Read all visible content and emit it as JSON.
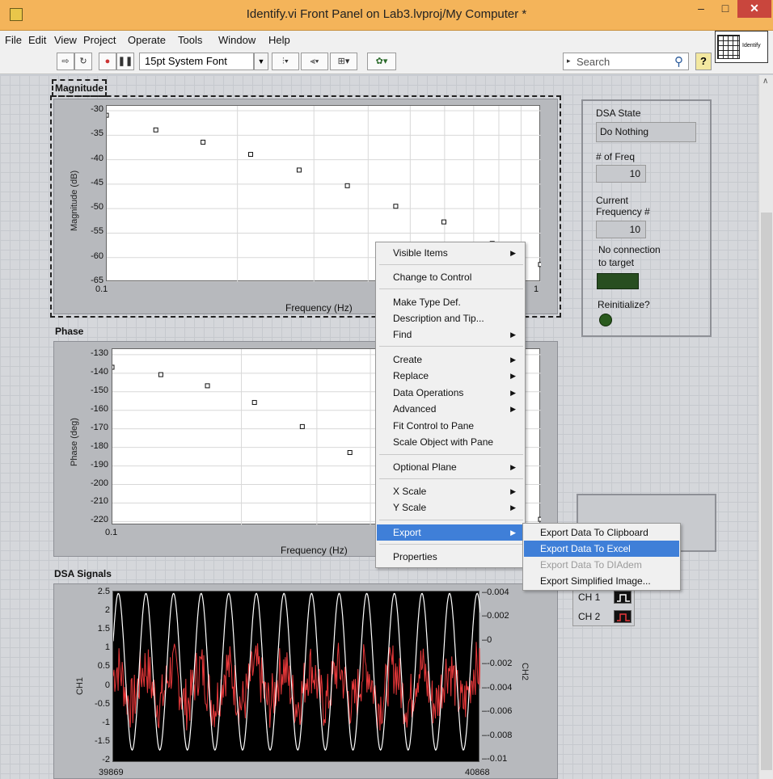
{
  "window": {
    "title": "Identify.vi Front Panel on Lab3.lvproj/My Computer *",
    "min": "–",
    "max": "□",
    "close": "✕"
  },
  "menu": [
    "File",
    "Edit",
    "View",
    "Project",
    "Operate",
    "Tools",
    "Window",
    "Help"
  ],
  "toolbar": {
    "font": "15pt System Font",
    "search_placeholder": "Search",
    "help": "?",
    "vi_icon_text": "Identify"
  },
  "magnitude_graph": {
    "label": "Magnitude",
    "ylabel": "Magnitude (dB)",
    "xlabel": "Frequency (Hz)",
    "yticks": [
      "-30",
      "-35",
      "-40",
      "-45",
      "-50",
      "-55",
      "-60",
      "-65"
    ],
    "xticks": [
      "0.1",
      "1"
    ]
  },
  "phase_graph": {
    "label": "Phase",
    "ylabel": "Phase (deg)",
    "xlabel": "Frequency (Hz)",
    "yticks": [
      "-130",
      "-140",
      "-150",
      "-160",
      "-170",
      "-180",
      "-190",
      "-200",
      "-210",
      "-220"
    ],
    "xticks": [
      "0.1"
    ]
  },
  "signals_graph": {
    "label": "DSA Signals",
    "ylabel": "CH1",
    "y2label": "CH2",
    "yticks": [
      "2.5",
      "2",
      "1.5",
      "1",
      "0.5",
      "0",
      "-0.5",
      "-1",
      "-1.5",
      "-2"
    ],
    "y2ticks": [
      "0.004",
      "0.002",
      "0",
      "-0.002",
      "-0.004",
      "-0.006",
      "-0.008",
      "-0.01"
    ],
    "xticks": [
      "39869",
      "40868"
    ],
    "colors": {
      "ch1": "#ffffff",
      "ch2": "#e8383a",
      "bg": "#000000"
    }
  },
  "chart_data": [
    {
      "type": "scatter",
      "title": "Magnitude",
      "xlabel": "Frequency (Hz)",
      "ylabel": "Magnitude (dB)",
      "x_scale": "log",
      "xlim": [
        0.1,
        1
      ],
      "ylim": [
        -65,
        -29
      ],
      "x": [
        0.1,
        0.13,
        0.167,
        0.215,
        0.278,
        0.359,
        0.464,
        0.599,
        0.774,
        1.0
      ],
      "y": [
        -31,
        -34,
        -36.5,
        -39,
        -42.2,
        -45.4,
        -49.6,
        -52.8,
        -57.2,
        -61.5
      ]
    },
    {
      "type": "scatter",
      "title": "Phase",
      "xlabel": "Frequency (Hz)",
      "ylabel": "Phase (deg)",
      "x_scale": "log",
      "xlim": [
        0.1,
        1
      ],
      "ylim": [
        -222,
        -127
      ],
      "x": [
        0.1,
        0.13,
        0.167,
        0.215,
        0.278,
        0.359,
        1.0
      ],
      "y": [
        -137,
        -141,
        -147,
        -156,
        -169,
        -183,
        -219
      ]
    }
  ],
  "dsa": {
    "state_label": "DSA State",
    "state_value": "Do Nothing",
    "nfreq_label": "# of Freq",
    "nfreq_value": "10",
    "curfreq_label1": "Current",
    "curfreq_label2": "Frequency #",
    "curfreq_value": "10",
    "noconn1": "No connection",
    "noconn2": "to target",
    "reinit": "Reinitialize?"
  },
  "legend": {
    "ch1": "CH 1",
    "ch2": "CH 2"
  },
  "context_menu": {
    "items": [
      {
        "label": "Visible Items",
        "arrow": "▶"
      },
      {
        "label": "Change to Control"
      },
      {
        "label": "Make Type Def."
      },
      {
        "label": "Description and Tip..."
      },
      {
        "label": "Find",
        "arrow": "▶"
      },
      {
        "label": "Create",
        "arrow": "▶"
      },
      {
        "label": "Replace",
        "arrow": "▶"
      },
      {
        "label": "Data Operations",
        "arrow": "▶"
      },
      {
        "label": "Advanced",
        "arrow": "▶"
      },
      {
        "label": "Fit Control to Pane"
      },
      {
        "label": "Scale Object with Pane"
      },
      {
        "label": "Optional Plane",
        "arrow": "▶"
      },
      {
        "label": "X Scale",
        "arrow": "▶"
      },
      {
        "label": "Y Scale",
        "arrow": "▶"
      },
      {
        "label": "Export",
        "arrow": "▶"
      },
      {
        "label": "Properties"
      }
    ],
    "submenu": [
      {
        "label": "Export Data To Clipboard"
      },
      {
        "label": "Export Data To Excel"
      },
      {
        "label": "Export Data To DIAdem"
      },
      {
        "label": "Export Simplified Image..."
      }
    ]
  }
}
